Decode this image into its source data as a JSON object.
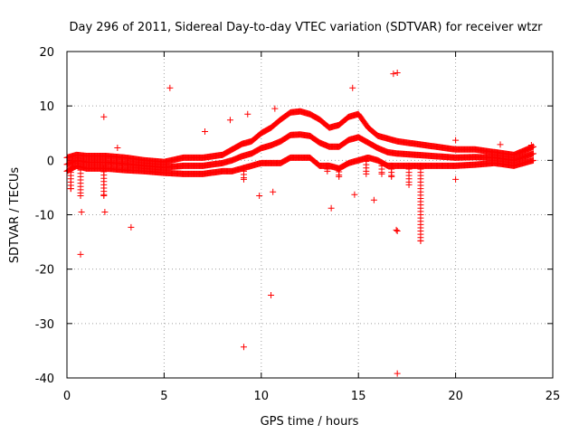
{
  "chart_data": {
    "type": "scatter",
    "title": "Day 296 of 2011, Sidereal Day-to-day VTEC variation (SDTVAR) for receiver wtzr",
    "xlabel": "GPS time / hours",
    "ylabel": "SDTVAR / TECUs",
    "xlim": [
      0,
      25
    ],
    "ylim": [
      -40,
      20
    ],
    "x_ticks": [
      0,
      5,
      10,
      15,
      20,
      25
    ],
    "y_ticks": [
      -40,
      -30,
      -20,
      -10,
      0,
      10,
      20
    ],
    "x_tick_labels": [
      "0",
      "5",
      "10",
      "15",
      "20",
      "25"
    ],
    "y_tick_labels": [
      "-40",
      "-30",
      "-20",
      "-10",
      "0",
      "10",
      "20"
    ],
    "grid": true,
    "marker": "plus",
    "color": "#ff0000",
    "series": [
      {
        "name": "SDTVAR",
        "outliers": [
          {
            "x": 0.7,
            "y": -17.3
          },
          {
            "x": 0.75,
            "y": -9.5
          },
          {
            "x": 1.9,
            "y": 8.0
          },
          {
            "x": 1.95,
            "y": -9.5
          },
          {
            "x": 2.6,
            "y": 2.3
          },
          {
            "x": 3.3,
            "y": -12.3
          },
          {
            "x": 5.3,
            "y": 13.3
          },
          {
            "x": 7.1,
            "y": 5.3
          },
          {
            "x": 8.4,
            "y": 7.4
          },
          {
            "x": 9.1,
            "y": -34.3
          },
          {
            "x": 9.3,
            "y": 8.5
          },
          {
            "x": 9.9,
            "y": -6.5
          },
          {
            "x": 10.5,
            "y": -24.8
          },
          {
            "x": 10.6,
            "y": -5.8
          },
          {
            "x": 10.7,
            "y": 9.5
          },
          {
            "x": 13.6,
            "y": -8.8
          },
          {
            "x": 14.7,
            "y": 13.3
          },
          {
            "x": 14.8,
            "y": -6.3
          },
          {
            "x": 15.8,
            "y": -7.3
          },
          {
            "x": 16.8,
            "y": 15.9
          },
          {
            "x": 17.0,
            "y": 16.1
          },
          {
            "x": 16.95,
            "y": -12.8
          },
          {
            "x": 17.0,
            "y": -13.0
          },
          {
            "x": 17.0,
            "y": -39.2
          },
          {
            "x": 20.0,
            "y": 3.7
          },
          {
            "x": 20.0,
            "y": -3.5
          },
          {
            "x": 22.3,
            "y": 2.9
          },
          {
            "x": 23.9,
            "y": 2.8
          }
        ],
        "envelope": {
          "x": [
            0,
            0.5,
            1,
            2,
            3,
            4,
            5,
            6,
            7,
            8,
            8.5,
            9,
            9.5,
            10,
            10.5,
            11,
            11.5,
            12,
            12.5,
            13,
            13.5,
            14,
            14.5,
            15,
            15.5,
            16,
            16.5,
            17,
            18,
            19,
            20,
            21,
            22,
            23,
            24
          ],
          "upper": [
            0.5,
            1.0,
            0.8,
            0.8,
            0.5,
            0.0,
            -0.3,
            0.5,
            0.5,
            1.0,
            2.0,
            3.0,
            3.5,
            5.0,
            6.0,
            7.5,
            8.8,
            9.0,
            8.5,
            7.5,
            6.0,
            6.5,
            8.0,
            8.5,
            6.0,
            4.5,
            4.0,
            3.5,
            3.0,
            2.5,
            2.0,
            2.0,
            1.5,
            1.0,
            2.5
          ],
          "lower": [
            -2.0,
            -1.0,
            -1.5,
            -1.5,
            -1.8,
            -2.0,
            -2.3,
            -2.5,
            -2.5,
            -2.0,
            -2.0,
            -1.5,
            -1.0,
            -0.5,
            -0.5,
            -0.5,
            0.5,
            0.5,
            0.5,
            -1.0,
            -1.0,
            -1.5,
            -0.5,
            0.0,
            0.5,
            0.0,
            -1.0,
            -1.0,
            -1.0,
            -1.0,
            -1.0,
            -0.8,
            -0.5,
            -1.0,
            0.0
          ]
        },
        "dips": [
          {
            "x": 0.2,
            "y": -5.2
          },
          {
            "x": 0.7,
            "y": -6.5
          },
          {
            "x": 1.9,
            "y": -6.5
          },
          {
            "x": 9.1,
            "y": -3.5
          },
          {
            "x": 13.4,
            "y": -2.0
          },
          {
            "x": 14.0,
            "y": -3.0
          },
          {
            "x": 15.4,
            "y": -2.5
          },
          {
            "x": 16.2,
            "y": -2.5
          },
          {
            "x": 16.7,
            "y": -3.0
          },
          {
            "x": 17.6,
            "y": -4.5
          },
          {
            "x": 18.2,
            "y": -14.8
          }
        ]
      }
    ]
  }
}
